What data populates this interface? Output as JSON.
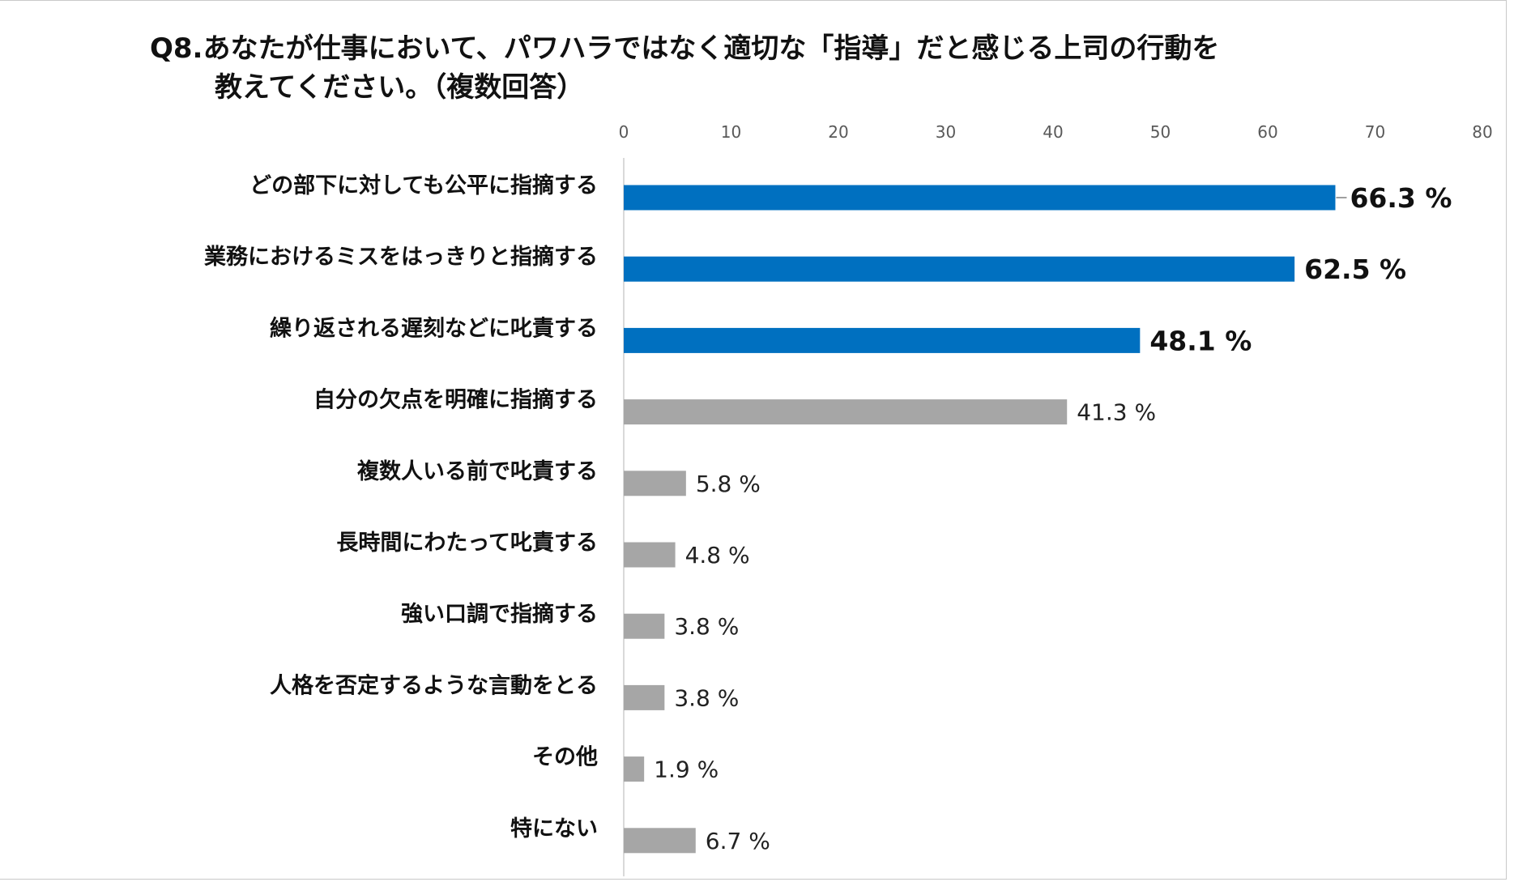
{
  "chart_data": {
    "type": "bar",
    "orientation": "horizontal",
    "title_line1": "Q8.あなたが仕事において、パワハラではなく適切な「指導」だと感じる上司の行動を",
    "title_line2": "教えてください。（複数回答）",
    "categories": [
      "どの部下に対しても公平に指摘する",
      "業務におけるミスをはっきりと指摘する",
      "繰り返される遅刻などに叱責する",
      "自分の欠点を明確に指摘する",
      "複数人いる前で叱責する",
      "長時間にわたって叱責する",
      "強い口調で指摘する",
      "人格を否定するような言動をとる",
      "その他",
      "特にない"
    ],
    "values": [
      66.3,
      62.5,
      48.1,
      41.3,
      5.8,
      4.8,
      3.8,
      3.8,
      1.9,
      6.7
    ],
    "value_labels": [
      "66.3 %",
      "62.5 %",
      "48.1 %",
      "41.3 %",
      "5.8 %",
      "4.8 %",
      "3.8 %",
      "3.8 %",
      "1.9 %",
      "6.7 %"
    ],
    "highlighted": [
      true,
      true,
      true,
      false,
      false,
      false,
      false,
      false,
      false,
      false
    ],
    "xlim": [
      0,
      80
    ],
    "xticks": [
      0,
      10,
      20,
      30,
      40,
      50,
      60,
      70,
      80
    ],
    "xtick_labels": [
      "0",
      "10",
      "20",
      "30",
      "40",
      "50",
      "60",
      "70",
      "80"
    ],
    "colors": {
      "highlight": "#0070C0",
      "normal": "#A6A6A6",
      "axis": "#D9D9D9"
    },
    "xaxis_position": "top",
    "grid": false,
    "legend": "none"
  }
}
